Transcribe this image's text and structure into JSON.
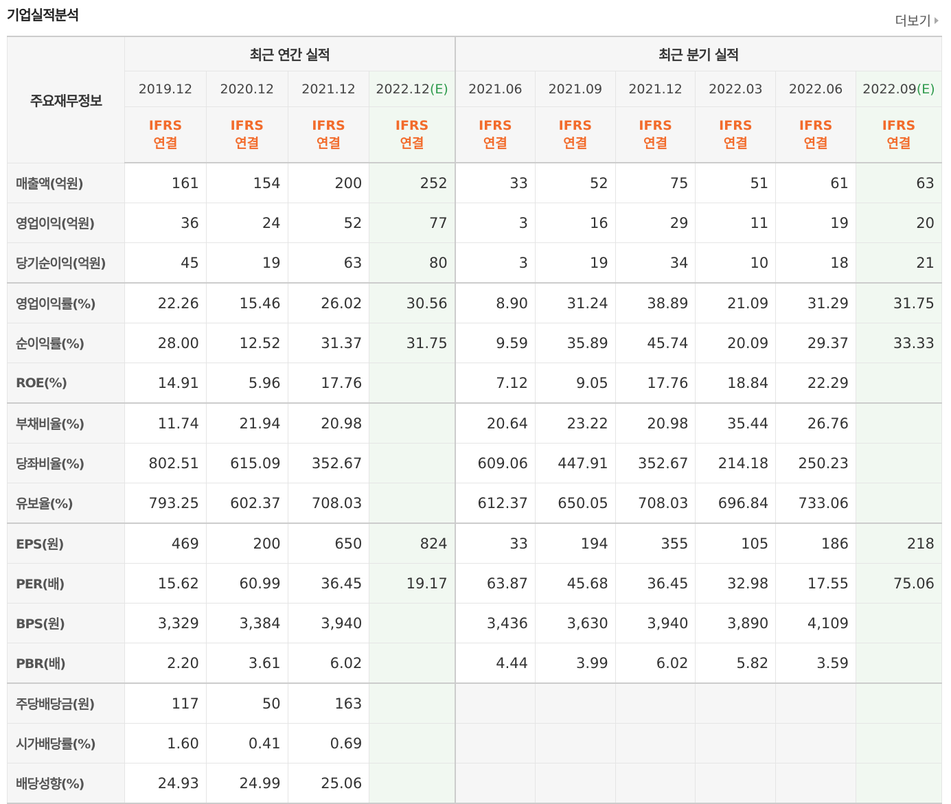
{
  "header": {
    "title": "기업실적분석",
    "more_label": "더보기"
  },
  "table": {
    "corner_label": "주요재무정보",
    "group_annual": "최근 연간 실적",
    "group_quarter": "최근 분기 실적",
    "periods": [
      "2019.12",
      "2020.12",
      "2021.12",
      "2022.12",
      "2021.06",
      "2021.09",
      "2021.12",
      "2022.03",
      "2022.06",
      "2022.09"
    ],
    "estimate_tag": "(E)",
    "ifrs_line1": "IFRS",
    "ifrs_line2": "연결",
    "rows": [
      {
        "label": "매출액(억원)",
        "values": [
          "161",
          "154",
          "200",
          "252",
          "33",
          "52",
          "75",
          "51",
          "61",
          "63"
        ]
      },
      {
        "label": "영업이익(억원)",
        "values": [
          "36",
          "24",
          "52",
          "77",
          "3",
          "16",
          "29",
          "11",
          "19",
          "20"
        ]
      },
      {
        "label": "당기순이익(억원)",
        "values": [
          "45",
          "19",
          "63",
          "80",
          "3",
          "19",
          "34",
          "10",
          "18",
          "21"
        ]
      },
      {
        "label": "영업이익률(%)",
        "values": [
          "22.26",
          "15.46",
          "26.02",
          "30.56",
          "8.90",
          "31.24",
          "38.89",
          "21.09",
          "31.29",
          "31.75"
        ]
      },
      {
        "label": "순이익률(%)",
        "values": [
          "28.00",
          "12.52",
          "31.37",
          "31.75",
          "9.59",
          "35.89",
          "45.74",
          "20.09",
          "29.37",
          "33.33"
        ]
      },
      {
        "label": "ROE(%)",
        "values": [
          "14.91",
          "5.96",
          "17.76",
          "",
          "7.12",
          "9.05",
          "17.76",
          "18.84",
          "22.29",
          ""
        ]
      },
      {
        "label": "부채비율(%)",
        "values": [
          "11.74",
          "21.94",
          "20.98",
          "",
          "20.64",
          "23.22",
          "20.98",
          "35.44",
          "26.76",
          ""
        ]
      },
      {
        "label": "당좌비율(%)",
        "values": [
          "802.51",
          "615.09",
          "352.67",
          "",
          "609.06",
          "447.91",
          "352.67",
          "214.18",
          "250.23",
          ""
        ]
      },
      {
        "label": "유보율(%)",
        "values": [
          "793.25",
          "602.37",
          "708.03",
          "",
          "612.37",
          "650.05",
          "708.03",
          "696.84",
          "733.06",
          ""
        ]
      },
      {
        "label": "EPS(원)",
        "values": [
          "469",
          "200",
          "650",
          "824",
          "33",
          "194",
          "355",
          "105",
          "186",
          "218"
        ]
      },
      {
        "label": "PER(배)",
        "values": [
          "15.62",
          "60.99",
          "36.45",
          "19.17",
          "63.87",
          "45.68",
          "36.45",
          "32.98",
          "17.55",
          "75.06"
        ]
      },
      {
        "label": "BPS(원)",
        "values": [
          "3,329",
          "3,384",
          "3,940",
          "",
          "3,436",
          "3,630",
          "3,940",
          "3,890",
          "4,109",
          ""
        ]
      },
      {
        "label": "PBR(배)",
        "values": [
          "2.20",
          "3.61",
          "6.02",
          "",
          "4.44",
          "3.99",
          "6.02",
          "5.82",
          "3.59",
          ""
        ]
      },
      {
        "label": "주당배당금(원)",
        "values": [
          "117",
          "50",
          "163",
          "",
          "",
          "",
          "",
          "",
          "",
          ""
        ]
      },
      {
        "label": "시가배당률(%)",
        "values": [
          "1.60",
          "0.41",
          "0.69",
          "",
          "",
          "",
          "",
          "",
          "",
          ""
        ]
      },
      {
        "label": "배당성향(%)",
        "values": [
          "24.93",
          "24.99",
          "25.06",
          "",
          "",
          "",
          "",
          "",
          "",
          ""
        ]
      }
    ]
  },
  "colors": {
    "ifrs_orange": "#f26b2b",
    "estimate_green": "#2e9a4c",
    "estimate_bg": "#f1f8f1",
    "header_bg": "#f6f6f6"
  }
}
